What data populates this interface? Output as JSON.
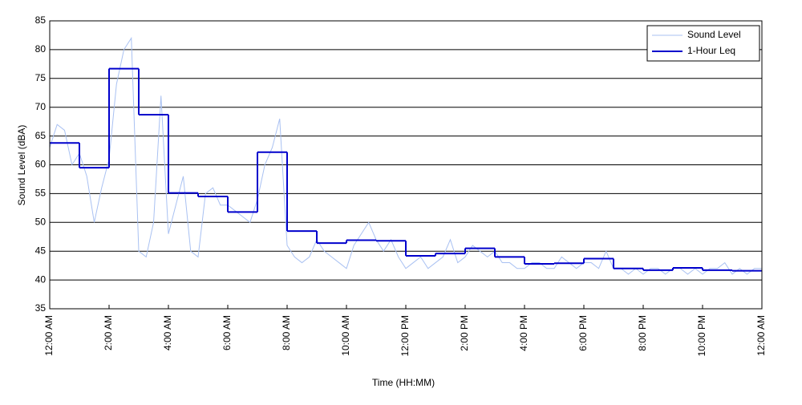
{
  "chart_data": {
    "type": "line",
    "xlabel": "Time (HH:MM)",
    "ylabel": "Sound Level (dBA)",
    "xlim": [
      0,
      24
    ],
    "ylim": [
      35,
      85
    ],
    "xticks": [
      {
        "value": 0,
        "label": "12:00 AM"
      },
      {
        "value": 2,
        "label": "2:00 AM"
      },
      {
        "value": 4,
        "label": "4:00 AM"
      },
      {
        "value": 6,
        "label": "6:00 AM"
      },
      {
        "value": 8,
        "label": "8:00 AM"
      },
      {
        "value": 10,
        "label": "10:00 AM"
      },
      {
        "value": 12,
        "label": "12:00 PM"
      },
      {
        "value": 14,
        "label": "2:00 PM"
      },
      {
        "value": 16,
        "label": "4:00 PM"
      },
      {
        "value": 18,
        "label": "6:00 PM"
      },
      {
        "value": 20,
        "label": "8:00 PM"
      },
      {
        "value": 22,
        "label": "10:00 PM"
      },
      {
        "value": 24,
        "label": "12:00 AM"
      }
    ],
    "yticks": [
      35,
      40,
      45,
      50,
      55,
      60,
      65,
      70,
      75,
      80,
      85
    ],
    "grid": true,
    "legend": "upper right",
    "series": [
      {
        "name": "Sound Level",
        "color": "#a9c1f2",
        "style": "line",
        "x": [
          0,
          0.25,
          0.5,
          0.75,
          1,
          1.25,
          1.5,
          1.75,
          2,
          2.25,
          2.5,
          2.75,
          3,
          3.25,
          3.5,
          3.75,
          4,
          4.25,
          4.5,
          4.75,
          5,
          5.25,
          5.5,
          5.75,
          6,
          6.25,
          6.5,
          6.75,
          7,
          7.25,
          7.5,
          7.75,
          8,
          8.25,
          8.5,
          8.75,
          9,
          9.25,
          9.5,
          9.75,
          10,
          10.25,
          10.5,
          10.75,
          11,
          11.25,
          11.5,
          11.75,
          12,
          12.25,
          12.5,
          12.75,
          13,
          13.25,
          13.5,
          13.75,
          14,
          14.25,
          14.5,
          14.75,
          15,
          15.25,
          15.5,
          15.75,
          16,
          16.25,
          16.5,
          16.75,
          17,
          17.25,
          17.5,
          17.75,
          18,
          18.25,
          18.5,
          18.75,
          19,
          19.25,
          19.5,
          19.75,
          20,
          20.25,
          20.5,
          20.75,
          21,
          21.25,
          21.5,
          21.75,
          22,
          22.25,
          22.5,
          22.75,
          23,
          23.25,
          23.5,
          23.75,
          24
        ],
        "values": [
          63,
          67,
          66,
          60,
          62,
          58,
          50,
          56,
          61,
          74,
          80,
          82,
          45,
          44,
          50,
          72,
          48,
          53,
          58,
          45,
          44,
          55,
          56,
          53,
          53,
          52,
          51,
          50,
          54,
          60,
          63,
          68,
          46,
          44,
          43,
          44,
          47,
          45,
          44,
          43,
          42,
          46,
          48,
          50,
          47,
          45,
          47,
          44,
          42,
          43,
          44,
          42,
          43,
          44,
          47,
          43,
          44,
          46,
          45,
          44,
          45,
          43,
          43,
          42,
          42,
          43,
          43,
          42,
          42,
          44,
          43,
          42,
          43,
          43,
          42,
          45,
          42,
          42,
          41,
          42,
          41,
          42,
          42,
          41,
          42,
          42,
          41,
          42,
          41,
          42,
          42,
          43,
          41,
          42,
          41,
          42,
          42
        ]
      },
      {
        "name": "1-Hour Leq",
        "color": "#0000cc",
        "style": "steps",
        "x": [
          0,
          1,
          2,
          3,
          4,
          5,
          6,
          7,
          8,
          9,
          10,
          11,
          12,
          13,
          14,
          15,
          16,
          17,
          18,
          19,
          20,
          21,
          22,
          23
        ],
        "values": [
          63.8,
          59.5,
          76.7,
          68.7,
          55.1,
          54.5,
          51.8,
          62.2,
          48.5,
          46.4,
          46.9,
          46.8,
          44.2,
          44.6,
          45.5,
          44.0,
          42.8,
          42.9,
          43.7,
          42.0,
          41.7,
          42.1,
          41.7,
          41.6
        ]
      }
    ]
  }
}
